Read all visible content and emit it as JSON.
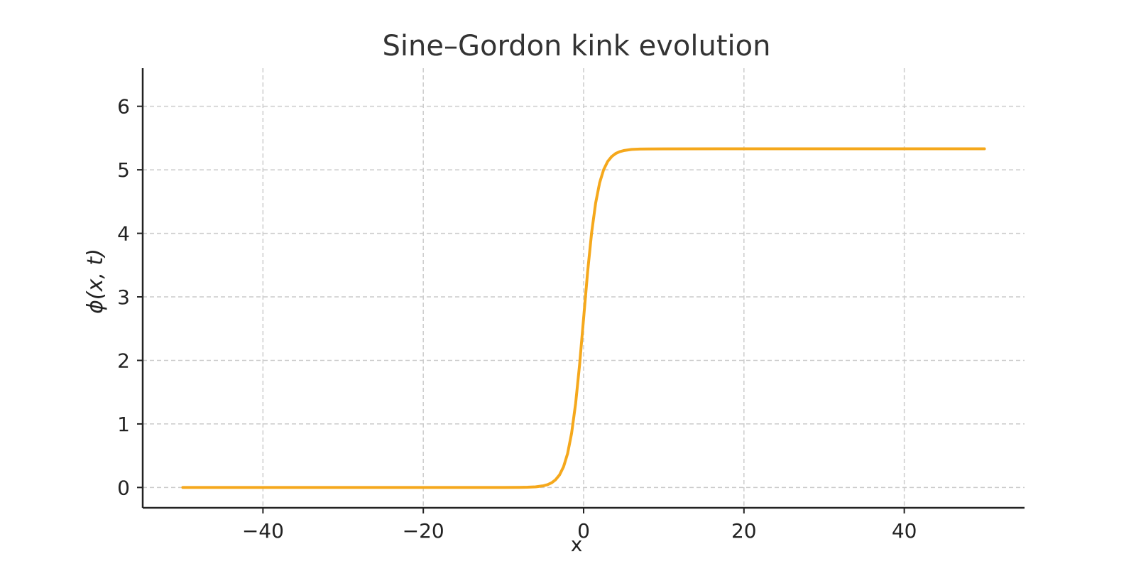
{
  "chart_data": {
    "type": "line",
    "title": "Sine–Gordon kink evolution",
    "xlabel": "x",
    "ylabel": "ϕ(x, t)",
    "xlim": [
      -55,
      55
    ],
    "ylim": [
      -0.32,
      6.6
    ],
    "xticks": [
      -40,
      -20,
      0,
      20,
      40
    ],
    "xtick_labels": [
      "−40",
      "−20",
      "0",
      "20",
      "40"
    ],
    "yticks": [
      0,
      1,
      2,
      3,
      4,
      5,
      6
    ],
    "ytick_labels": [
      "0",
      "1",
      "2",
      "3",
      "4",
      "5",
      "6"
    ],
    "grid": true,
    "line_color": "#f5a81c",
    "series": [
      {
        "x": [
          -50,
          -40,
          -30,
          -20,
          -10,
          -8,
          -7,
          -6,
          -5,
          -4.5,
          -4,
          -3.5,
          -3,
          -2.5,
          -2,
          -1.5,
          -1,
          -0.5,
          0,
          0.5,
          1,
          1.5,
          2,
          2.5,
          3,
          3.5,
          4,
          4.5,
          5,
          6,
          7,
          8,
          10,
          20,
          30,
          40,
          50
        ],
        "y": [
          0,
          0,
          0,
          0,
          0.0002,
          0.0013,
          0.0036,
          0.0099,
          0.027,
          0.044,
          0.073,
          0.121,
          0.199,
          0.327,
          0.533,
          0.853,
          1.318,
          1.935,
          2.665,
          3.395,
          4.012,
          4.477,
          4.797,
          5.003,
          5.131,
          5.209,
          5.257,
          5.286,
          5.303,
          5.321,
          5.327,
          5.329,
          5.33,
          5.331,
          5.331,
          5.331,
          5.331
        ]
      }
    ]
  }
}
